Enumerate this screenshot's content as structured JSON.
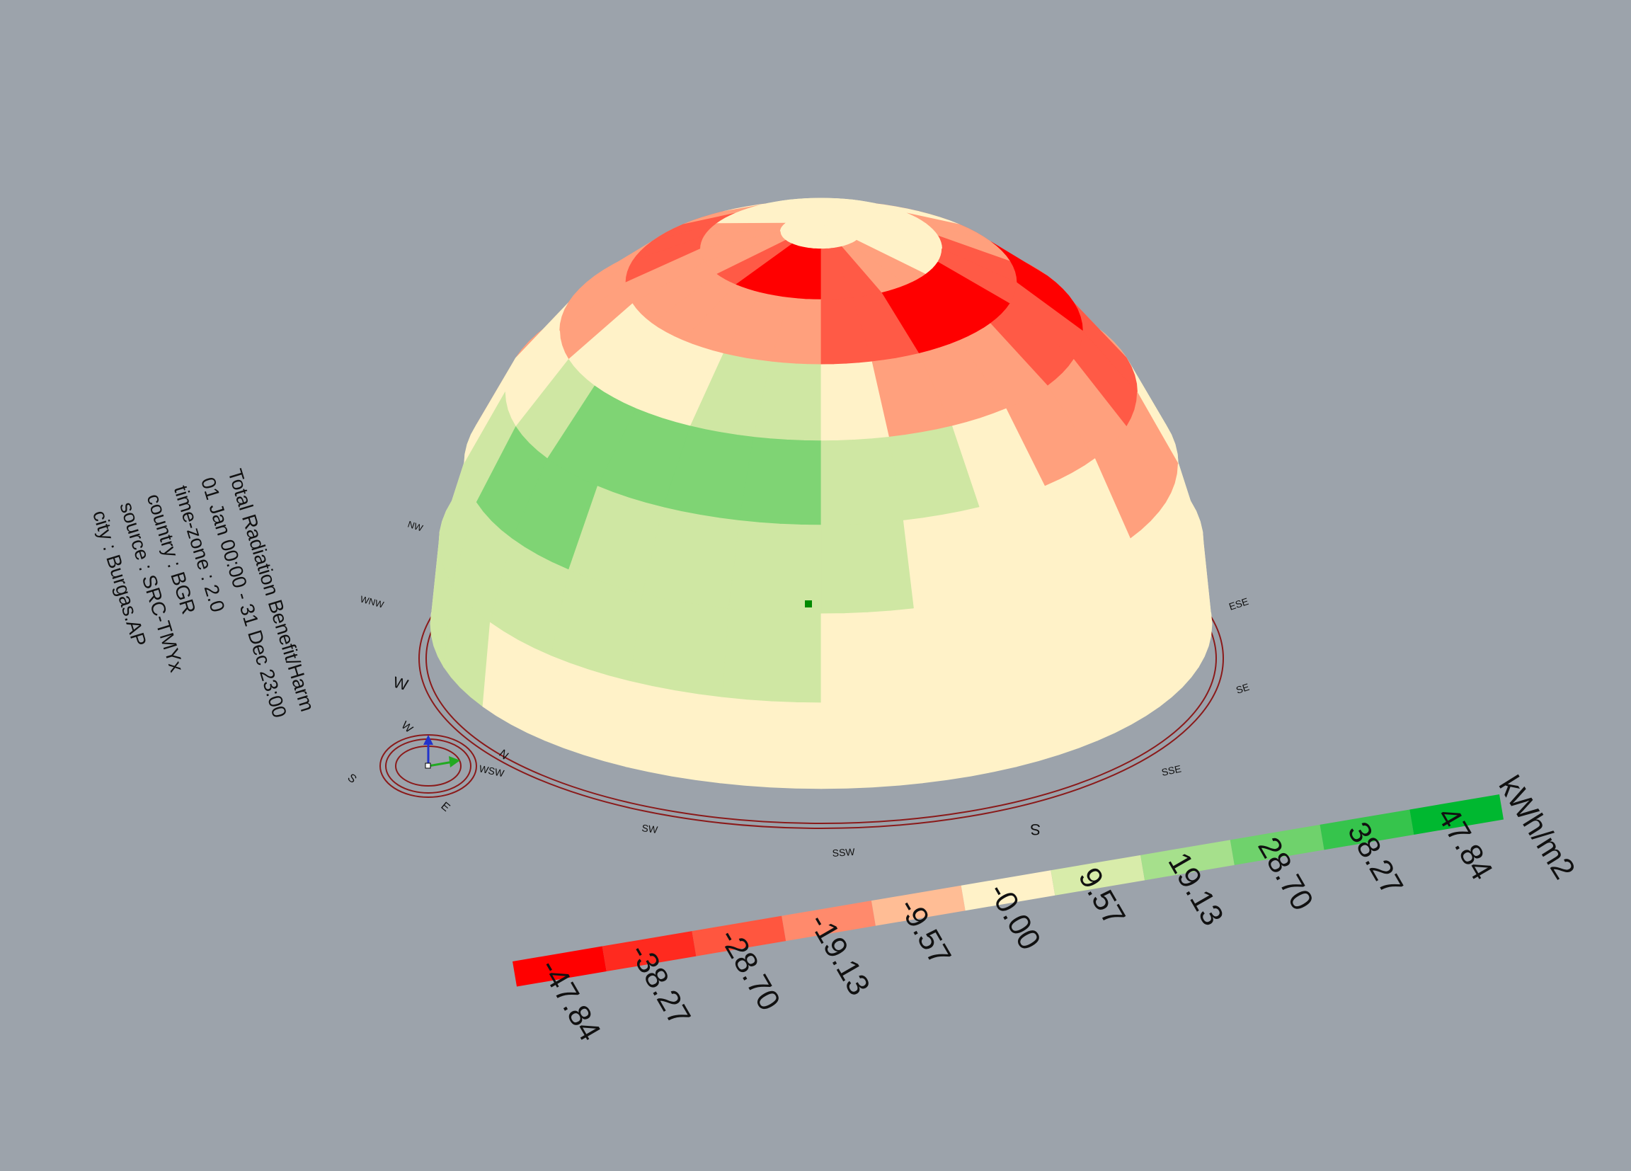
{
  "info": {
    "lines": [
      "Total Radiation Benefit/Harm",
      "01 Jan 00:00 - 31 Dec 23:00",
      "time-zone : 2.0",
      "country : BGR",
      "source : SRC-TMYx",
      "city : Burgas.AP"
    ]
  },
  "legend": {
    "unit": "kWh/m2",
    "labels": [
      "-47.84",
      "-38.27",
      "-28.70",
      "-19.13",
      "-9.57",
      "-0.00",
      "9.57",
      "19.13",
      "28.70",
      "38.27",
      "47.84"
    ],
    "colors": [
      "#ff0000",
      "#ff2a1f",
      "#ff563f",
      "#ff8a6c",
      "#ffbd95",
      "#fff2c8",
      "#d8ecaa",
      "#a6e08c",
      "#6fd26c",
      "#36c44c",
      "#00b830"
    ]
  },
  "directions": [
    "NW",
    "WNW",
    "W",
    "WSW",
    "SW",
    "SSW",
    "S",
    "SSE",
    "SE",
    "ESE"
  ],
  "compass": {
    "labels": [
      "W",
      "N",
      "S",
      "E"
    ],
    "colors": {
      "x_axis": "#22aa22",
      "y_axis": "#2233cc",
      "ring": "#8a1a1a"
    }
  },
  "dome": {
    "colors": {
      "strong_harm": "#ff0000",
      "harm": "#ff5a46",
      "mild_harm": "#ffa07d",
      "neutral": "#fff2c8",
      "mild_benefit": "#cfe7a3",
      "benefit": "#7fd474"
    }
  }
}
